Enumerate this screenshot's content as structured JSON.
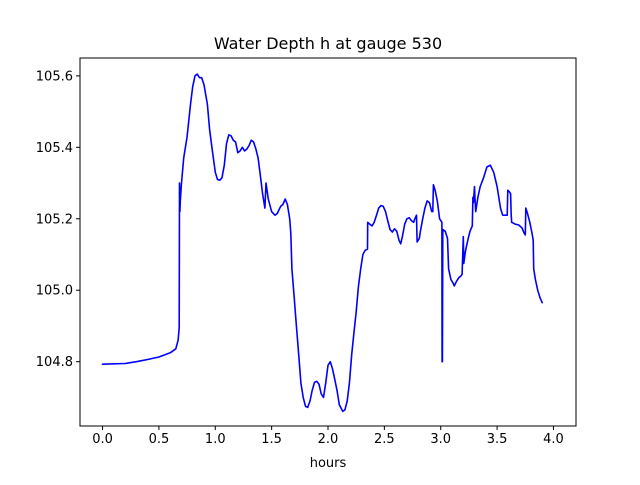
{
  "chart_data": {
    "type": "line",
    "title": "Water Depth h at gauge 530",
    "xlabel": "hours",
    "ylabel": "",
    "xlim": [
      -0.2,
      4.2
    ],
    "ylim": [
      104.62,
      105.65
    ],
    "xticks": [
      0.0,
      0.5,
      1.0,
      1.5,
      2.0,
      2.5,
      3.0,
      3.5,
      4.0
    ],
    "xtick_labels": [
      "0.0",
      "0.5",
      "1.0",
      "1.5",
      "2.0",
      "2.5",
      "3.0",
      "3.5",
      "4.0"
    ],
    "yticks": [
      104.8,
      105.0,
      105.2,
      105.4,
      105.6
    ],
    "ytick_labels": [
      "104.8",
      "105.0",
      "105.2",
      "105.4",
      "105.6"
    ],
    "grid": false,
    "series": [
      {
        "color": "#0000ff",
        "points": [
          [
            0.0,
            104.793
          ],
          [
            0.2,
            104.795
          ],
          [
            0.3,
            104.8
          ],
          [
            0.4,
            104.806
          ],
          [
            0.5,
            104.813
          ],
          [
            0.6,
            104.825
          ],
          [
            0.65,
            104.836
          ],
          [
            0.67,
            104.86
          ],
          [
            0.68,
            104.895
          ],
          [
            0.683,
            105.3
          ],
          [
            0.686,
            105.22
          ],
          [
            0.69,
            105.25
          ],
          [
            0.7,
            105.3
          ],
          [
            0.72,
            105.37
          ],
          [
            0.75,
            105.43
          ],
          [
            0.78,
            105.52
          ],
          [
            0.8,
            105.57
          ],
          [
            0.82,
            105.6
          ],
          [
            0.84,
            105.605
          ],
          [
            0.86,
            105.595
          ],
          [
            0.88,
            105.595
          ],
          [
            0.9,
            105.575
          ],
          [
            0.93,
            105.52
          ],
          [
            0.95,
            105.45
          ],
          [
            0.97,
            105.4
          ],
          [
            1.0,
            105.33
          ],
          [
            1.02,
            105.31
          ],
          [
            1.04,
            105.308
          ],
          [
            1.06,
            105.315
          ],
          [
            1.08,
            105.35
          ],
          [
            1.1,
            105.41
          ],
          [
            1.12,
            105.435
          ],
          [
            1.14,
            105.432
          ],
          [
            1.16,
            105.42
          ],
          [
            1.18,
            105.415
          ],
          [
            1.2,
            105.385
          ],
          [
            1.22,
            105.39
          ],
          [
            1.24,
            105.4
          ],
          [
            1.26,
            105.39
          ],
          [
            1.28,
            105.395
          ],
          [
            1.3,
            105.405
          ],
          [
            1.32,
            105.42
          ],
          [
            1.34,
            105.415
          ],
          [
            1.36,
            105.395
          ],
          [
            1.38,
            105.37
          ],
          [
            1.4,
            105.32
          ],
          [
            1.42,
            105.27
          ],
          [
            1.44,
            105.23
          ],
          [
            1.45,
            105.3
          ],
          [
            1.47,
            105.255
          ],
          [
            1.5,
            105.22
          ],
          [
            1.53,
            105.21
          ],
          [
            1.55,
            105.215
          ],
          [
            1.58,
            105.235
          ],
          [
            1.6,
            105.24
          ],
          [
            1.62,
            105.255
          ],
          [
            1.64,
            105.24
          ],
          [
            1.66,
            105.2
          ],
          [
            1.67,
            105.16
          ],
          [
            1.68,
            105.06
          ],
          [
            1.7,
            104.98
          ],
          [
            1.72,
            104.9
          ],
          [
            1.74,
            104.82
          ],
          [
            1.76,
            104.74
          ],
          [
            1.78,
            104.7
          ],
          [
            1.8,
            104.675
          ],
          [
            1.82,
            104.672
          ],
          [
            1.84,
            104.69
          ],
          [
            1.86,
            104.72
          ],
          [
            1.88,
            104.742
          ],
          [
            1.9,
            104.745
          ],
          [
            1.92,
            104.737
          ],
          [
            1.94,
            104.71
          ],
          [
            1.96,
            104.7
          ],
          [
            1.98,
            104.74
          ],
          [
            2.0,
            104.79
          ],
          [
            2.02,
            104.8
          ],
          [
            2.04,
            104.78
          ],
          [
            2.06,
            104.75
          ],
          [
            2.08,
            104.72
          ],
          [
            2.1,
            104.68
          ],
          [
            2.13,
            104.661
          ],
          [
            2.15,
            104.665
          ],
          [
            2.17,
            104.69
          ],
          [
            2.19,
            104.74
          ],
          [
            2.21,
            104.82
          ],
          [
            2.23,
            104.88
          ],
          [
            2.25,
            104.94
          ],
          [
            2.27,
            105.01
          ],
          [
            2.29,
            105.06
          ],
          [
            2.31,
            105.1
          ],
          [
            2.33,
            105.112
          ],
          [
            2.35,
            105.115
          ],
          [
            2.352,
            105.19
          ],
          [
            2.37,
            105.185
          ],
          [
            2.39,
            105.18
          ],
          [
            2.41,
            105.19
          ],
          [
            2.43,
            105.21
          ],
          [
            2.45,
            105.23
          ],
          [
            2.47,
            105.237
          ],
          [
            2.49,
            105.235
          ],
          [
            2.51,
            105.22
          ],
          [
            2.53,
            105.195
          ],
          [
            2.55,
            105.17
          ],
          [
            2.57,
            105.163
          ],
          [
            2.59,
            105.172
          ],
          [
            2.61,
            105.165
          ],
          [
            2.63,
            105.14
          ],
          [
            2.645,
            105.13
          ],
          [
            2.66,
            105.15
          ],
          [
            2.68,
            105.185
          ],
          [
            2.7,
            105.2
          ],
          [
            2.72,
            105.203
          ],
          [
            2.74,
            105.195
          ],
          [
            2.76,
            105.19
          ],
          [
            2.77,
            105.2
          ],
          [
            2.785,
            105.21
          ],
          [
            2.79,
            105.135
          ],
          [
            2.81,
            105.145
          ],
          [
            2.82,
            105.165
          ],
          [
            2.84,
            105.2
          ],
          [
            2.86,
            105.23
          ],
          [
            2.88,
            105.25
          ],
          [
            2.9,
            105.245
          ],
          [
            2.92,
            105.22
          ],
          [
            2.93,
            105.22
          ],
          [
            2.935,
            105.295
          ],
          [
            2.95,
            105.28
          ],
          [
            2.97,
            105.25
          ],
          [
            2.99,
            105.2
          ],
          [
            3.01,
            105.19
          ],
          [
            3.012,
            104.8
          ],
          [
            3.015,
            104.8
          ],
          [
            3.018,
            105.17
          ],
          [
            3.04,
            105.165
          ],
          [
            3.06,
            105.145
          ],
          [
            3.07,
            105.06
          ],
          [
            3.09,
            105.03
          ],
          [
            3.11,
            105.02
          ],
          [
            3.12,
            105.012
          ],
          [
            3.14,
            105.025
          ],
          [
            3.16,
            105.035
          ],
          [
            3.18,
            105.04
          ],
          [
            3.19,
            105.045
          ],
          [
            3.2,
            105.15
          ],
          [
            3.205,
            105.075
          ],
          [
            3.22,
            105.11
          ],
          [
            3.24,
            105.14
          ],
          [
            3.26,
            105.165
          ],
          [
            3.28,
            105.18
          ],
          [
            3.285,
            105.26
          ],
          [
            3.29,
            105.245
          ],
          [
            3.3,
            105.29
          ],
          [
            3.305,
            105.25
          ],
          [
            3.31,
            105.22
          ],
          [
            3.33,
            105.26
          ],
          [
            3.35,
            105.29
          ],
          [
            3.38,
            105.315
          ],
          [
            3.41,
            105.345
          ],
          [
            3.44,
            105.35
          ],
          [
            3.47,
            105.33
          ],
          [
            3.5,
            105.29
          ],
          [
            3.53,
            105.23
          ],
          [
            3.55,
            105.21
          ],
          [
            3.58,
            105.21
          ],
          [
            3.59,
            105.21
          ],
          [
            3.595,
            105.28
          ],
          [
            3.61,
            105.275
          ],
          [
            3.62,
            105.27
          ],
          [
            3.625,
            105.21
          ],
          [
            3.63,
            105.19
          ],
          [
            3.66,
            105.185
          ],
          [
            3.69,
            105.183
          ],
          [
            3.72,
            105.175
          ],
          [
            3.74,
            105.16
          ],
          [
            3.75,
            105.155
          ],
          [
            3.755,
            105.23
          ],
          [
            3.77,
            105.215
          ],
          [
            3.79,
            105.19
          ],
          [
            3.81,
            105.16
          ],
          [
            3.82,
            105.14
          ],
          [
            3.825,
            105.06
          ],
          [
            3.84,
            105.03
          ],
          [
            3.86,
            105.0
          ],
          [
            3.88,
            104.98
          ],
          [
            3.9,
            104.965
          ]
        ]
      }
    ]
  }
}
